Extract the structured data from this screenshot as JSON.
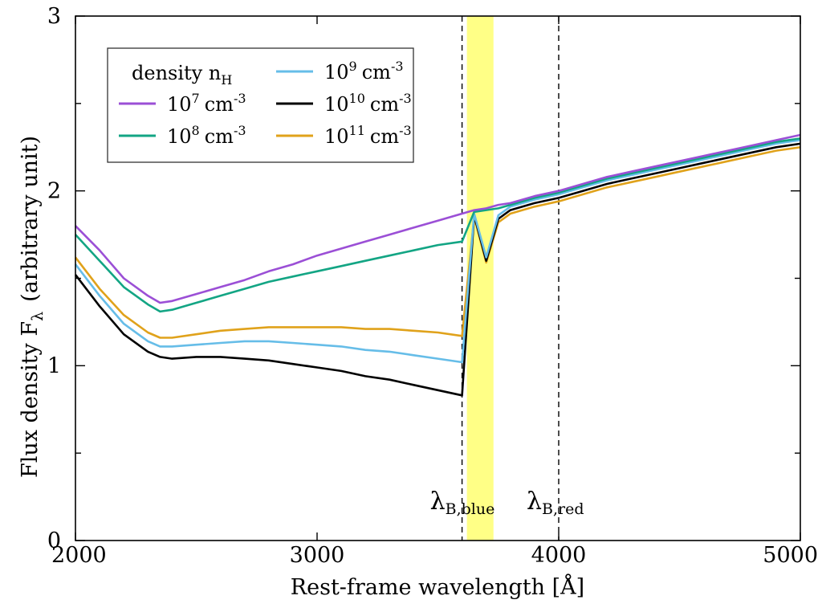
{
  "chart_data": {
    "type": "line",
    "title": "",
    "xlabel": "Rest-frame wavelength [Å]",
    "ylabel_main": "Flux density F",
    "ylabel_sub": "λ",
    "ylabel_tail": "(arbitrary unit)",
    "xlim": [
      2000,
      5000
    ],
    "ylim": [
      0,
      3
    ],
    "xticks": [
      2000,
      3000,
      4000,
      5000
    ],
    "yticks": [
      0,
      1,
      2,
      3
    ],
    "grid": false,
    "legend_title": "density n",
    "legend_title_sub": "H",
    "legend_position": "top-left",
    "band": {
      "from": 3620,
      "to": 3730,
      "color": "#ffff80"
    },
    "vlines": [
      {
        "x": 3600,
        "label": "λ",
        "label_sub": "B,blue"
      },
      {
        "x": 4000,
        "label": "λ",
        "label_sub": "B,red"
      }
    ],
    "series": [
      {
        "name": "10^7 cm^-3",
        "base": "10",
        "exp": "7",
        "unit": "cm",
        "unit_exp": "-3",
        "color": "#9b4fd6",
        "x": [
          2000,
          2100,
          2200,
          2300,
          2350,
          2400,
          2500,
          2600,
          2700,
          2800,
          2900,
          3000,
          3100,
          3200,
          3300,
          3400,
          3500,
          3600,
          3650,
          3700,
          3750,
          3800,
          3900,
          4000,
          4100,
          4200,
          4300,
          4400,
          4500,
          4600,
          4700,
          4800,
          4900,
          5000
        ],
        "y": [
          1.8,
          1.66,
          1.5,
          1.4,
          1.36,
          1.37,
          1.41,
          1.45,
          1.49,
          1.54,
          1.58,
          1.63,
          1.67,
          1.71,
          1.75,
          1.79,
          1.83,
          1.87,
          1.89,
          1.9,
          1.92,
          1.93,
          1.97,
          2.0,
          2.04,
          2.08,
          2.11,
          2.14,
          2.17,
          2.2,
          2.23,
          2.26,
          2.29,
          2.32
        ]
      },
      {
        "name": "10^8 cm^-3",
        "base": "10",
        "exp": "8",
        "unit": "cm",
        "unit_exp": "-3",
        "color": "#13a584",
        "x": [
          2000,
          2100,
          2200,
          2300,
          2350,
          2400,
          2500,
          2600,
          2700,
          2800,
          2900,
          3000,
          3100,
          3200,
          3300,
          3400,
          3500,
          3600,
          3650,
          3700,
          3750,
          3800,
          3900,
          4000,
          4100,
          4200,
          4300,
          4400,
          4500,
          4600,
          4700,
          4800,
          4900,
          5000
        ],
        "y": [
          1.75,
          1.6,
          1.45,
          1.35,
          1.31,
          1.32,
          1.36,
          1.4,
          1.44,
          1.48,
          1.51,
          1.54,
          1.57,
          1.6,
          1.63,
          1.66,
          1.69,
          1.71,
          1.88,
          1.89,
          1.9,
          1.92,
          1.96,
          1.99,
          2.03,
          2.07,
          2.1,
          2.13,
          2.16,
          2.19,
          2.22,
          2.25,
          2.28,
          2.3
        ]
      },
      {
        "name": "10^9 cm^-3",
        "base": "10",
        "exp": "9",
        "unit": "cm",
        "unit_exp": "-3",
        "color": "#66bde8",
        "x": [
          2000,
          2100,
          2200,
          2300,
          2350,
          2400,
          2500,
          2600,
          2700,
          2800,
          2900,
          3000,
          3100,
          3200,
          3300,
          3400,
          3500,
          3600,
          3650,
          3700,
          3750,
          3800,
          3900,
          4000,
          4100,
          4200,
          4300,
          4400,
          4500,
          4600,
          4700,
          4800,
          4900,
          5000
        ],
        "y": [
          1.58,
          1.4,
          1.24,
          1.14,
          1.11,
          1.11,
          1.12,
          1.13,
          1.14,
          1.14,
          1.13,
          1.12,
          1.11,
          1.09,
          1.08,
          1.06,
          1.04,
          1.02,
          1.87,
          1.62,
          1.86,
          1.91,
          1.95,
          1.98,
          2.02,
          2.06,
          2.09,
          2.12,
          2.15,
          2.18,
          2.21,
          2.24,
          2.27,
          2.29
        ]
      },
      {
        "name": "10^10 cm^-3",
        "base": "10",
        "exp": "10",
        "unit": "cm",
        "unit_exp": "-3",
        "color": "#000000",
        "x": [
          2000,
          2100,
          2200,
          2300,
          2350,
          2400,
          2500,
          2600,
          2700,
          2800,
          2900,
          3000,
          3100,
          3200,
          3300,
          3400,
          3500,
          3600,
          3650,
          3700,
          3750,
          3800,
          3900,
          4000,
          4100,
          4200,
          4300,
          4400,
          4500,
          4600,
          4700,
          4800,
          4900,
          5000
        ],
        "y": [
          1.52,
          1.34,
          1.18,
          1.08,
          1.05,
          1.04,
          1.05,
          1.05,
          1.04,
          1.03,
          1.01,
          0.99,
          0.97,
          0.94,
          0.92,
          0.89,
          0.86,
          0.83,
          1.86,
          1.6,
          1.84,
          1.89,
          1.93,
          1.96,
          2.0,
          2.04,
          2.07,
          2.1,
          2.13,
          2.16,
          2.19,
          2.22,
          2.25,
          2.27
        ]
      },
      {
        "name": "10^11 cm^-3",
        "base": "10",
        "exp": "11",
        "unit": "cm",
        "unit_exp": "-3",
        "color": "#e0a21b",
        "x": [
          2000,
          2100,
          2200,
          2300,
          2350,
          2400,
          2500,
          2600,
          2700,
          2800,
          2900,
          3000,
          3100,
          3200,
          3300,
          3400,
          3500,
          3600,
          3650,
          3700,
          3750,
          3800,
          3900,
          4000,
          4100,
          4200,
          4300,
          4400,
          4500,
          4600,
          4700,
          4800,
          4900,
          5000
        ],
        "y": [
          1.62,
          1.44,
          1.29,
          1.19,
          1.16,
          1.16,
          1.18,
          1.2,
          1.21,
          1.22,
          1.22,
          1.22,
          1.22,
          1.21,
          1.21,
          1.2,
          1.19,
          1.17,
          1.85,
          1.59,
          1.82,
          1.87,
          1.91,
          1.94,
          1.98,
          2.02,
          2.05,
          2.08,
          2.11,
          2.14,
          2.17,
          2.2,
          2.23,
          2.25
        ]
      }
    ]
  }
}
